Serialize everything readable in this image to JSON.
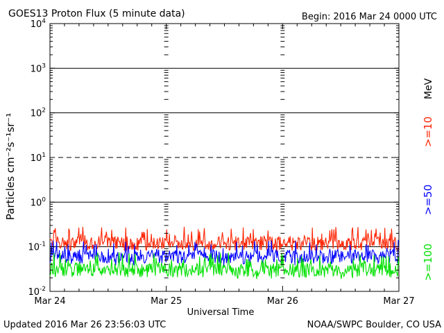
{
  "header": {
    "title": "GOES13 Proton Flux (5 minute data)",
    "begin": "Begin: 2016 Mar 24 0000 UTC"
  },
  "footer": {
    "updated": "Updated 2016 Mar 26 23:56:03 UTC",
    "credit": "NOAA/SWPC Boulder, CO USA"
  },
  "chart_data": {
    "type": "line",
    "title": "GOES13 Proton Flux (5 minute data)",
    "xlabel": "Universal Time",
    "ylabel": "Particles cm⁻²s⁻¹sr⁻¹",
    "yscale": "log",
    "ylim": [
      0.01,
      10000
    ],
    "xlim": [
      "2016-03-24",
      "2016-03-27"
    ],
    "x_ticks": [
      "Mar 24",
      "Mar 25",
      "Mar 26",
      "Mar 27"
    ],
    "y_ticks": [
      {
        "base": "10",
        "exp": "-2",
        "value": 0.01
      },
      {
        "base": "10",
        "exp": "-1",
        "value": 0.1
      },
      {
        "base": "10",
        "exp": "0",
        "value": 1
      },
      {
        "base": "10",
        "exp": "1",
        "value": 10
      },
      {
        "base": "10",
        "exp": "2",
        "value": 100
      },
      {
        "base": "10",
        "exp": "3",
        "value": 1000
      },
      {
        "base": "10",
        "exp": "4",
        "value": 10000
      }
    ],
    "threshold_lines": [
      {
        "value": 0.1,
        "style": "solid"
      },
      {
        "value": 1,
        "style": "solid"
      },
      {
        "value": 10,
        "style": "dashed"
      },
      {
        "value": 100,
        "style": "solid"
      },
      {
        "value": 1000,
        "style": "solid"
      }
    ],
    "right_label_units": "MeV",
    "series": [
      {
        "name": ">=10",
        "color": "#ff2200",
        "baseline": 0.12,
        "peak": 0.28
      },
      {
        "name": ">=50",
        "color": "#0000ff",
        "baseline": 0.06,
        "peak": 0.14
      },
      {
        "name": ">=100",
        "color": "#00e000",
        "baseline": 0.03,
        "peak": 0.075
      }
    ]
  }
}
